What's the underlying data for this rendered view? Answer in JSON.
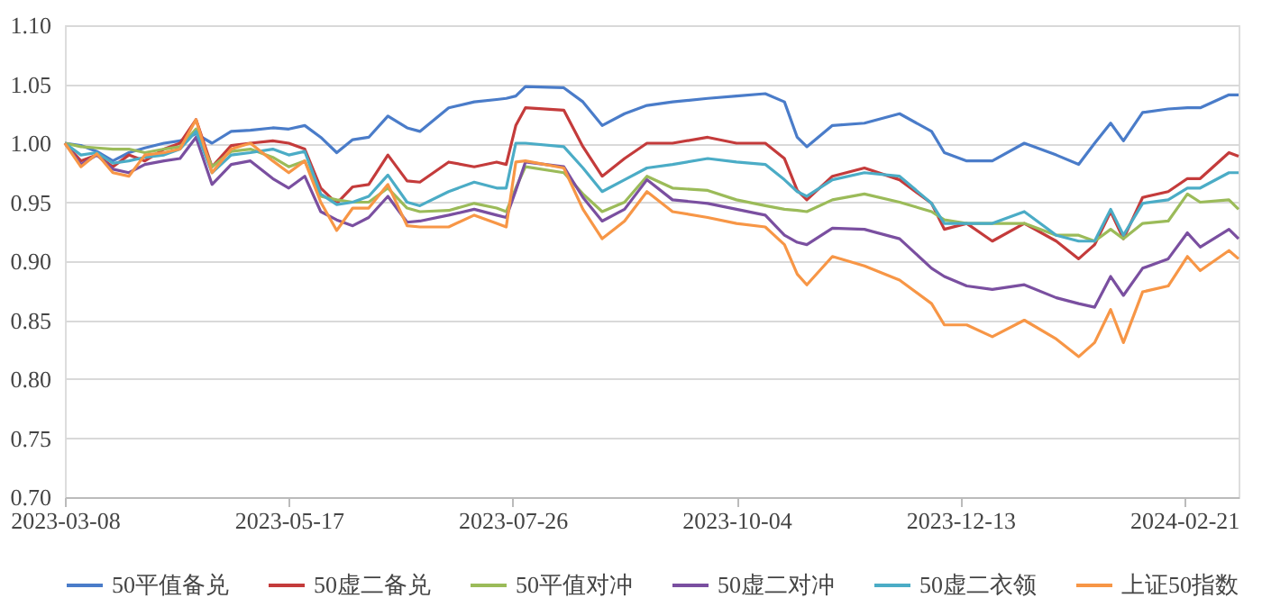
{
  "chart_data": {
    "type": "line",
    "x": [
      "2023-03-08",
      "2023-03-13",
      "2023-03-18",
      "2023-03-23",
      "2023-03-28",
      "2023-04-02",
      "2023-04-08",
      "2023-04-13",
      "2023-04-18",
      "2023-04-23",
      "2023-04-29",
      "2023-05-05",
      "2023-05-12",
      "2023-05-17",
      "2023-05-22",
      "2023-05-27",
      "2023-06-01",
      "2023-06-06",
      "2023-06-11",
      "2023-06-17",
      "2023-06-23",
      "2023-06-27",
      "2023-07-06",
      "2023-07-14",
      "2023-07-21",
      "2023-07-24",
      "2023-07-27",
      "2023-07-30",
      "2023-08-11",
      "2023-08-17",
      "2023-08-23",
      "2023-08-30",
      "2023-09-06",
      "2023-09-14",
      "2023-09-25",
      "2023-10-04",
      "2023-10-13",
      "2023-10-19",
      "2023-10-23",
      "2023-10-26",
      "2023-11-03",
      "2023-11-13",
      "2023-11-24",
      "2023-12-04",
      "2023-12-08",
      "2023-12-15",
      "2023-12-23",
      "2024-01-02",
      "2024-01-12",
      "2024-01-19",
      "2024-01-24",
      "2024-01-29",
      "2024-02-02",
      "2024-02-08",
      "2024-02-16",
      "2024-02-22",
      "2024-02-26",
      "2024-03-06",
      "2024-03-09"
    ],
    "series": [
      {
        "name": "50平值备兑",
        "color": "#4a7cc9",
        "values": [
          1.0,
          0.998,
          0.993,
          0.985,
          0.992,
          0.996,
          1.0,
          1.002,
          1.008,
          1.0,
          1.01,
          1.011,
          1.013,
          1.012,
          1.015,
          1.005,
          0.992,
          1.003,
          1.005,
          1.023,
          1.013,
          1.01,
          1.03,
          1.035,
          1.037,
          1.038,
          1.04,
          1.048,
          1.047,
          1.035,
          1.015,
          1.025,
          1.032,
          1.035,
          1.038,
          1.04,
          1.042,
          1.035,
          1.005,
          0.997,
          1.015,
          1.017,
          1.025,
          1.01,
          0.992,
          0.985,
          0.985,
          1.0,
          0.99,
          0.982,
          1.0,
          1.017,
          1.002,
          1.026,
          1.029,
          1.03,
          1.03,
          1.041,
          1.041
        ]
      },
      {
        "name": "50虚二备兑",
        "color": "#c43b3b",
        "values": [
          1.0,
          0.985,
          0.99,
          0.98,
          0.99,
          0.985,
          0.995,
          1.0,
          1.02,
          0.98,
          0.998,
          1.0,
          1.002,
          1.0,
          0.995,
          0.962,
          0.949,
          0.963,
          0.965,
          0.99,
          0.968,
          0.967,
          0.984,
          0.98,
          0.984,
          0.982,
          1.015,
          1.03,
          1.028,
          0.997,
          0.972,
          0.987,
          1.0,
          1.0,
          1.005,
          1.0,
          1.0,
          0.987,
          0.96,
          0.952,
          0.972,
          0.979,
          0.969,
          0.949,
          0.927,
          0.932,
          0.917,
          0.932,
          0.917,
          0.902,
          0.914,
          0.942,
          0.919,
          0.954,
          0.959,
          0.97,
          0.97,
          0.992,
          0.989
        ]
      },
      {
        "name": "50平值对冲",
        "color": "#9bbb59",
        "values": [
          1.0,
          0.997,
          0.996,
          0.995,
          0.995,
          0.992,
          0.995,
          0.997,
          1.012,
          0.98,
          0.993,
          0.995,
          0.988,
          0.98,
          0.985,
          0.955,
          0.952,
          0.95,
          0.95,
          0.962,
          0.945,
          0.942,
          0.943,
          0.949,
          0.945,
          0.942,
          0.962,
          0.98,
          0.975,
          0.957,
          0.942,
          0.95,
          0.972,
          0.962,
          0.96,
          0.952,
          0.947,
          0.944,
          0.943,
          0.942,
          0.952,
          0.957,
          0.95,
          0.942,
          0.935,
          0.932,
          0.932,
          0.932,
          0.922,
          0.922,
          0.917,
          0.927,
          0.919,
          0.932,
          0.934,
          0.957,
          0.95,
          0.952,
          0.944
        ]
      },
      {
        "name": "50虚二对冲",
        "color": "#7a4fa0",
        "values": [
          1.0,
          0.982,
          0.99,
          0.978,
          0.975,
          0.982,
          0.985,
          0.987,
          1.005,
          0.965,
          0.982,
          0.985,
          0.97,
          0.962,
          0.972,
          0.942,
          0.935,
          0.93,
          0.937,
          0.955,
          0.933,
          0.934,
          0.939,
          0.944,
          0.939,
          0.937,
          0.96,
          0.984,
          0.98,
          0.954,
          0.934,
          0.944,
          0.969,
          0.952,
          0.949,
          0.944,
          0.939,
          0.922,
          0.916,
          0.914,
          0.928,
          0.927,
          0.919,
          0.894,
          0.887,
          0.879,
          0.876,
          0.88,
          0.869,
          0.864,
          0.861,
          0.887,
          0.871,
          0.894,
          0.902,
          0.924,
          0.912,
          0.927,
          0.919
        ]
      },
      {
        "name": "50虚二衣领",
        "color": "#4bacc6",
        "values": [
          1.0,
          0.99,
          0.992,
          0.983,
          0.985,
          0.988,
          0.99,
          0.995,
          1.01,
          0.975,
          0.99,
          0.992,
          0.995,
          0.99,
          0.993,
          0.957,
          0.948,
          0.95,
          0.955,
          0.973,
          0.95,
          0.947,
          0.959,
          0.967,
          0.962,
          0.962,
          1.0,
          1.0,
          0.997,
          0.979,
          0.959,
          0.969,
          0.979,
          0.982,
          0.987,
          0.984,
          0.982,
          0.969,
          0.959,
          0.955,
          0.969,
          0.975,
          0.972,
          0.949,
          0.932,
          0.932,
          0.932,
          0.942,
          0.922,
          0.917,
          0.917,
          0.944,
          0.922,
          0.949,
          0.952,
          0.962,
          0.962,
          0.975,
          0.975
        ]
      },
      {
        "name": "上证50指数",
        "color": "#f79646",
        "values": [
          1.0,
          0.98,
          0.991,
          0.975,
          0.972,
          0.99,
          0.992,
          0.995,
          1.02,
          0.975,
          0.995,
          1.0,
          0.985,
          0.975,
          0.985,
          0.95,
          0.926,
          0.945,
          0.945,
          0.965,
          0.93,
          0.929,
          0.929,
          0.939,
          0.932,
          0.929,
          0.984,
          0.985,
          0.979,
          0.944,
          0.919,
          0.934,
          0.959,
          0.942,
          0.937,
          0.932,
          0.929,
          0.914,
          0.889,
          0.88,
          0.904,
          0.896,
          0.884,
          0.864,
          0.846,
          0.846,
          0.836,
          0.85,
          0.834,
          0.819,
          0.831,
          0.859,
          0.831,
          0.874,
          0.879,
          0.904,
          0.892,
          0.909,
          0.902
        ]
      }
    ],
    "xlim": [
      "2023-03-08",
      "2024-03-09"
    ],
    "xticks": [
      "2023-03-08",
      "2023-05-17",
      "2023-07-26",
      "2023-10-04",
      "2023-12-13",
      "2024-02-21"
    ],
    "ylim": [
      0.7,
      1.1
    ],
    "yticks": [
      {
        "value": 0.7,
        "label": "0.70"
      },
      {
        "value": 0.75,
        "label": "0.75"
      },
      {
        "value": 0.8,
        "label": "0.80"
      },
      {
        "value": 0.85,
        "label": "0.85"
      },
      {
        "value": 0.9,
        "label": "0.90"
      },
      {
        "value": 0.95,
        "label": "0.95"
      },
      {
        "value": 1.0,
        "label": "1.00"
      },
      {
        "value": 1.05,
        "label": "1.05"
      },
      {
        "value": 1.1,
        "label": "1.10"
      }
    ],
    "grid": "y",
    "legend": "bottom",
    "marker": "none",
    "line_style": "solid"
  }
}
